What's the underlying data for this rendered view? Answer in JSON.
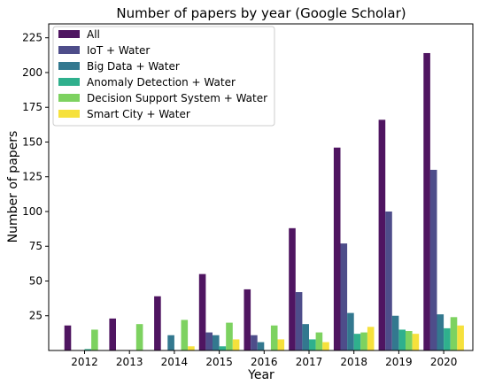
{
  "chart_data": {
    "type": "bar",
    "title": "Number of papers by year (Google Scholar)",
    "xlabel": "Year",
    "ylabel": "Number of papers",
    "categories": [
      "2012",
      "2013",
      "2014",
      "2015",
      "2016",
      "2017",
      "2018",
      "2019",
      "2020"
    ],
    "ylim": [
      0,
      235
    ],
    "yticks": [
      25,
      50,
      75,
      100,
      125,
      150,
      175,
      200,
      225
    ],
    "grid": false,
    "legend_position": "top-left",
    "series": [
      {
        "name": "All",
        "color": "#4f1561",
        "values": [
          18,
          23,
          39,
          55,
          44,
          88,
          146,
          166,
          214
        ]
      },
      {
        "name": "IoT + Water",
        "color": "#4e4d8a",
        "values": [
          0,
          0,
          0,
          13,
          11,
          42,
          77,
          100,
          130
        ]
      },
      {
        "name": "Big Data + Water",
        "color": "#33788f",
        "values": [
          0,
          0,
          11,
          11,
          6,
          19,
          27,
          25,
          26
        ]
      },
      {
        "name": "Anomaly Detection + Water",
        "color": "#2fb08d",
        "values": [
          1,
          0,
          0,
          3,
          0,
          8,
          12,
          15,
          16
        ]
      },
      {
        "name": "Decision Support System + Water",
        "color": "#7dd260",
        "values": [
          15,
          19,
          22,
          20,
          18,
          13,
          13,
          14,
          24
        ]
      },
      {
        "name": "Smart City + Water",
        "color": "#f6e13c",
        "values": [
          0,
          0,
          3,
          8,
          8,
          6,
          17,
          12,
          18
        ]
      }
    ]
  }
}
